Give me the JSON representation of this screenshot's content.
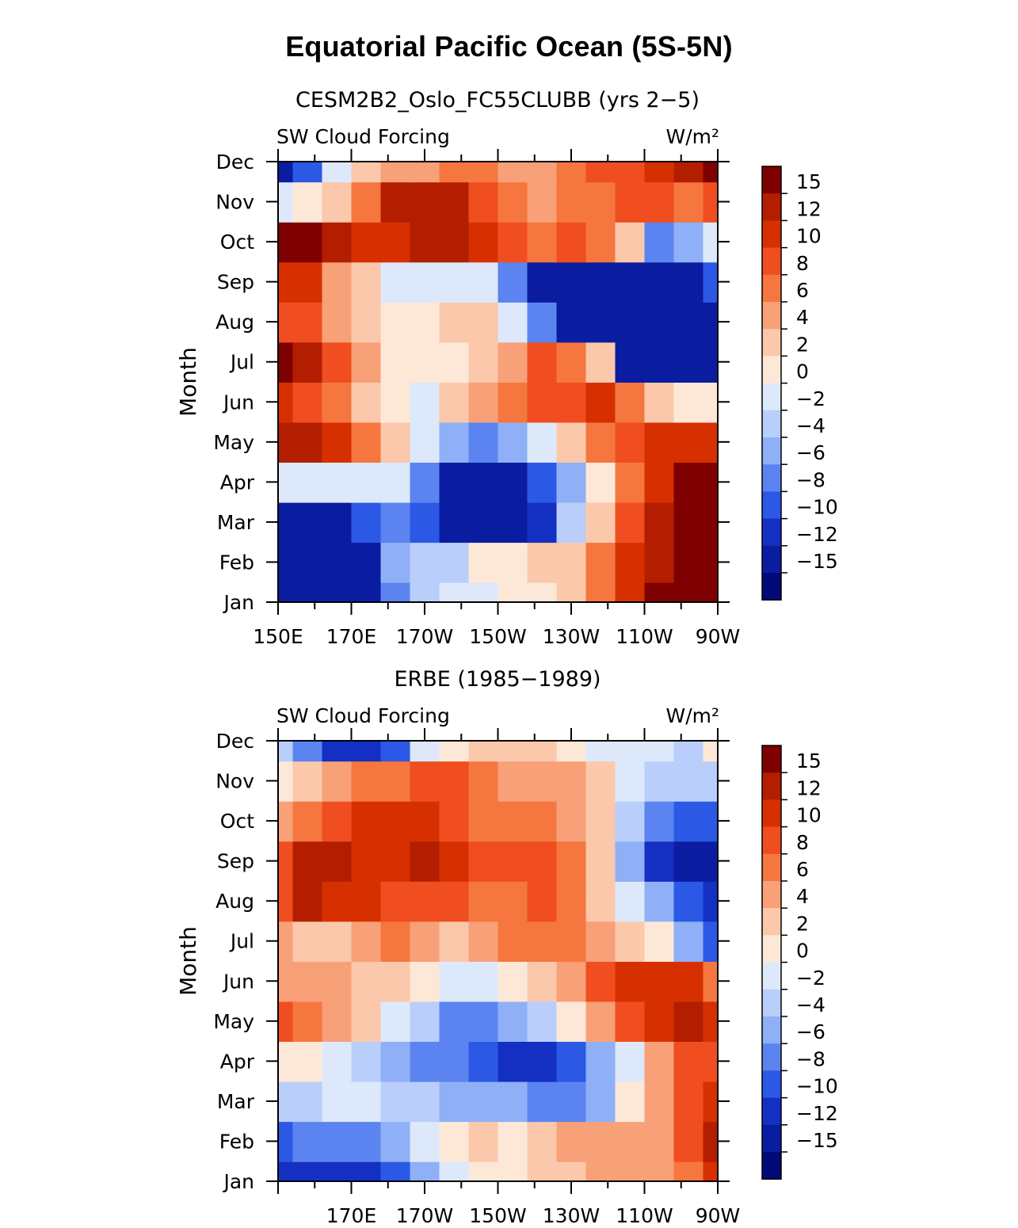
{
  "title": "Equatorial Pacific Ocean (5S-5N)",
  "colorbar": {
    "labels": [
      "15",
      "12",
      "10",
      "8",
      "6",
      "4",
      "2",
      "0",
      "−2",
      "−4",
      "−6",
      "−8",
      "−10",
      "−12",
      "−15"
    ],
    "levels": [
      15,
      12,
      10,
      8,
      6,
      4,
      2,
      0,
      -2,
      -4,
      -6,
      -8,
      -10,
      -12,
      -15
    ],
    "colors": [
      "#7f0000",
      "#b31e00",
      "#d73000",
      "#f04e20",
      "#f5773f",
      "#f8a078",
      "#fbc8ab",
      "#fde8d8",
      "#dde8fb",
      "#b9cefb",
      "#8fb0f7",
      "#5c84f0",
      "#2c58e6",
      "#1430c2",
      "#0a1da0",
      "#000a78"
    ]
  },
  "chart_data": [
    {
      "type": "heatmap",
      "title": "CESM2B2_Oslo_FC55CLUBB (yrs 2−5)",
      "left_label": "SW Cloud Forcing",
      "right_label": "W/m²",
      "ylabel": "Month",
      "x_ticks": [
        "150E",
        "170E",
        "170W",
        "150W",
        "130W",
        "110W",
        "90W"
      ],
      "y_ticks": [
        "Jan",
        "Feb",
        "Mar",
        "Apr",
        "May",
        "Jun",
        "Jul",
        "Aug",
        "Sep",
        "Oct",
        "Nov",
        "Dec"
      ],
      "lon_east": [
        150,
        158,
        166,
        174,
        182,
        190,
        198,
        206,
        214,
        222,
        230,
        238,
        246,
        254,
        262,
        270
      ],
      "values": [
        [
          -15,
          -15,
          -15,
          -15,
          -8,
          -4,
          -2,
          -1,
          0,
          1,
          2,
          6,
          10,
          15,
          15,
          15
        ],
        [
          -15,
          -15,
          -15,
          -14,
          -6,
          -4,
          -4,
          0,
          1,
          2,
          2,
          6,
          10,
          12,
          15,
          15
        ],
        [
          -15,
          -15,
          -15,
          -10,
          -8,
          -10,
          -14,
          -15,
          -15,
          -12,
          -4,
          2,
          8,
          12,
          15,
          15
        ],
        [
          -2,
          -2,
          -2,
          -2,
          -2,
          -8,
          -14,
          -15,
          -14,
          -10,
          -6,
          0,
          6,
          10,
          15,
          15
        ],
        [
          12,
          12,
          10,
          6,
          2,
          -2,
          -6,
          -8,
          -6,
          -2,
          2,
          6,
          8,
          10,
          10,
          10
        ],
        [
          10,
          8,
          6,
          2,
          0,
          -2,
          2,
          4,
          6,
          8,
          8,
          10,
          6,
          2,
          0,
          0
        ],
        [
          15,
          12,
          8,
          4,
          0,
          0,
          0,
          2,
          4,
          8,
          6,
          2,
          -15,
          -15,
          -15,
          -15
        ],
        [
          8,
          8,
          4,
          2,
          0,
          0,
          2,
          2,
          -2,
          -8,
          -15,
          -15,
          -15,
          -15,
          -15,
          -15
        ],
        [
          10,
          10,
          4,
          2,
          -2,
          -2,
          -2,
          -2,
          -8,
          -15,
          -15,
          -15,
          -15,
          -15,
          -15,
          -10
        ],
        [
          15,
          15,
          12,
          10,
          10,
          12,
          12,
          10,
          8,
          6,
          8,
          6,
          2,
          -8,
          -6,
          -2
        ],
        [
          -2,
          0,
          2,
          6,
          12,
          12,
          12,
          8,
          6,
          4,
          6,
          6,
          8,
          8,
          6,
          8
        ],
        [
          -15,
          -10,
          -2,
          2,
          4,
          4,
          6,
          6,
          4,
          4,
          6,
          8,
          8,
          10,
          12,
          15
        ]
      ]
    },
    {
      "type": "heatmap",
      "title": "ERBE (1985−1989)",
      "left_label": "SW Cloud Forcing",
      "right_label": "W/m²",
      "ylabel": "Month",
      "x_ticks": [
        "170E",
        "170W",
        "150W",
        "130W",
        "110W",
        "90W"
      ],
      "y_ticks": [
        "Jan",
        "Feb",
        "Mar",
        "Apr",
        "May",
        "Jun",
        "Jul",
        "Aug",
        "Sep",
        "Oct",
        "Nov",
        "Dec"
      ],
      "lon_east": [
        150,
        158,
        166,
        174,
        182,
        190,
        198,
        206,
        214,
        222,
        230,
        238,
        246,
        254,
        262,
        270
      ],
      "values": [
        [
          -12,
          -12,
          -12,
          -12,
          -10,
          -6,
          -2,
          0,
          0,
          2,
          2,
          4,
          4,
          4,
          6,
          10
        ],
        [
          -10,
          -8,
          -8,
          -8,
          -6,
          -2,
          0,
          2,
          0,
          2,
          4,
          4,
          4,
          4,
          8,
          12
        ],
        [
          -4,
          -4,
          -2,
          -2,
          -4,
          -4,
          -6,
          -6,
          -6,
          -8,
          -8,
          -6,
          0,
          4,
          8,
          10
        ],
        [
          0,
          0,
          -2,
          -4,
          -6,
          -8,
          -8,
          -10,
          -12,
          -12,
          -10,
          -6,
          -2,
          4,
          8,
          8
        ],
        [
          8,
          6,
          4,
          2,
          -2,
          -4,
          -8,
          -8,
          -6,
          -4,
          0,
          4,
          8,
          10,
          12,
          10
        ],
        [
          4,
          4,
          4,
          2,
          2,
          0,
          -2,
          -2,
          0,
          2,
          4,
          8,
          10,
          10,
          10,
          6
        ],
        [
          4,
          2,
          2,
          4,
          6,
          4,
          2,
          4,
          6,
          6,
          6,
          4,
          2,
          0,
          -6,
          -10
        ],
        [
          8,
          12,
          10,
          10,
          8,
          8,
          8,
          6,
          6,
          8,
          6,
          2,
          -2,
          -6,
          -10,
          -12
        ],
        [
          8,
          12,
          12,
          10,
          10,
          12,
          10,
          8,
          8,
          8,
          6,
          2,
          -6,
          -12,
          -15,
          -15
        ],
        [
          4,
          6,
          8,
          10,
          10,
          10,
          8,
          6,
          6,
          6,
          4,
          2,
          -4,
          -8,
          -10,
          -10
        ],
        [
          0,
          2,
          4,
          6,
          6,
          8,
          8,
          6,
          4,
          4,
          4,
          2,
          -2,
          -4,
          -4,
          -4
        ],
        [
          -4,
          -8,
          -12,
          -12,
          -10,
          -2,
          0,
          2,
          2,
          2,
          0,
          -2,
          -2,
          -2,
          -4,
          0
        ]
      ]
    }
  ]
}
